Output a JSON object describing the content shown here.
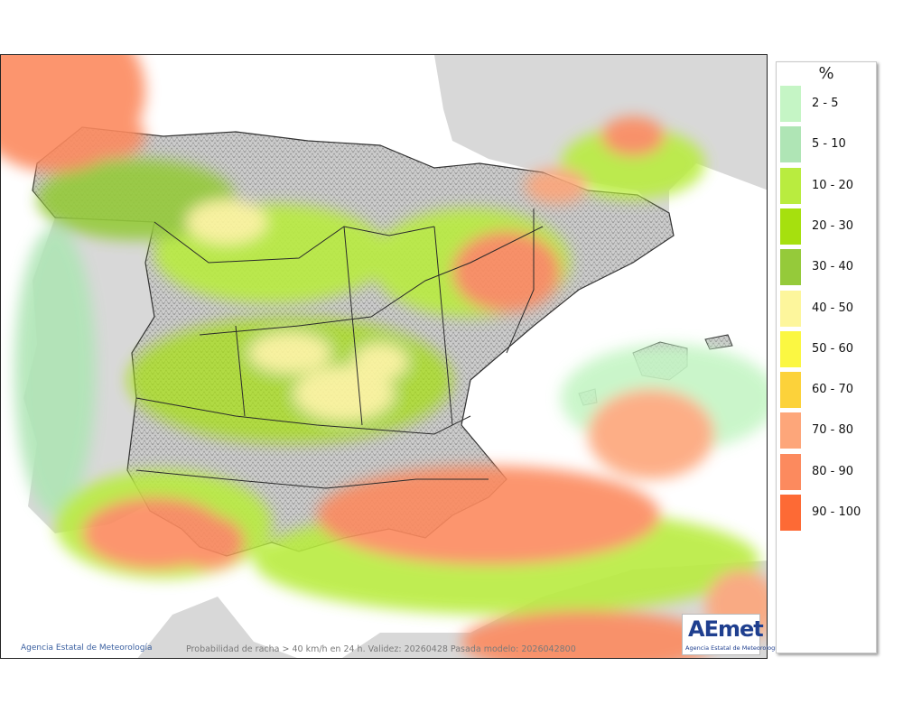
{
  "map": {
    "credit": "Agencia Estatal de Meteorología",
    "caption": "Probabilidad de racha > 40 km/h en 24 h. Validez: 20260428 Pasada modelo: 2026042800",
    "logo_text": "AEmet",
    "logo_subtitle": "Agencia Estatal de Meteorología"
  },
  "legend": {
    "unit": "%",
    "items": [
      {
        "label": "2 - 5",
        "color": "#c5f5c5"
      },
      {
        "label": "5 - 10",
        "color": "#afe5b5"
      },
      {
        "label": "10 - 20",
        "color": "#b9ec3f"
      },
      {
        "label": "20 - 30",
        "color": "#a6e00e"
      },
      {
        "label": "30 - 40",
        "color": "#95ca3a"
      },
      {
        "label": "40 - 50",
        "color": "#fdf69c"
      },
      {
        "label": "50 - 60",
        "color": "#fbf742"
      },
      {
        "label": "60 - 70",
        "color": "#fcd23a"
      },
      {
        "label": "70 - 80",
        "color": "#fda67a"
      },
      {
        "label": "80 - 90",
        "color": "#fc8a5e"
      },
      {
        "label": "90 - 100",
        "color": "#fd6a35"
      }
    ]
  }
}
